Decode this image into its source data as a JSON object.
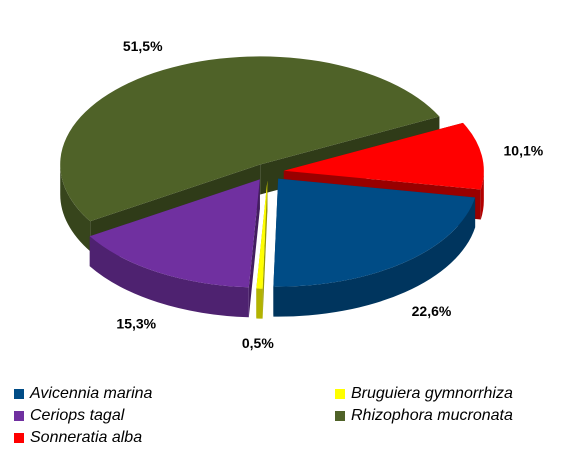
{
  "chart_data": {
    "type": "pie3d",
    "categories": [
      "Avicennia marina",
      "Bruguiera gymnorrhiza",
      "Ceriops tagal",
      "Rhizophora mucronata",
      "Sonneratia alba"
    ],
    "values": [
      22.6,
      0.5,
      15.3,
      51.5,
      10.1
    ],
    "value_labels": [
      "22,6%",
      "0,5%",
      "15,3%",
      "51,5%",
      "10,1%"
    ],
    "colors": [
      "#004c86",
      "#ffff00",
      "#7030a0",
      "#4f6228",
      "#ff0000"
    ],
    "legend": "bottom"
  }
}
